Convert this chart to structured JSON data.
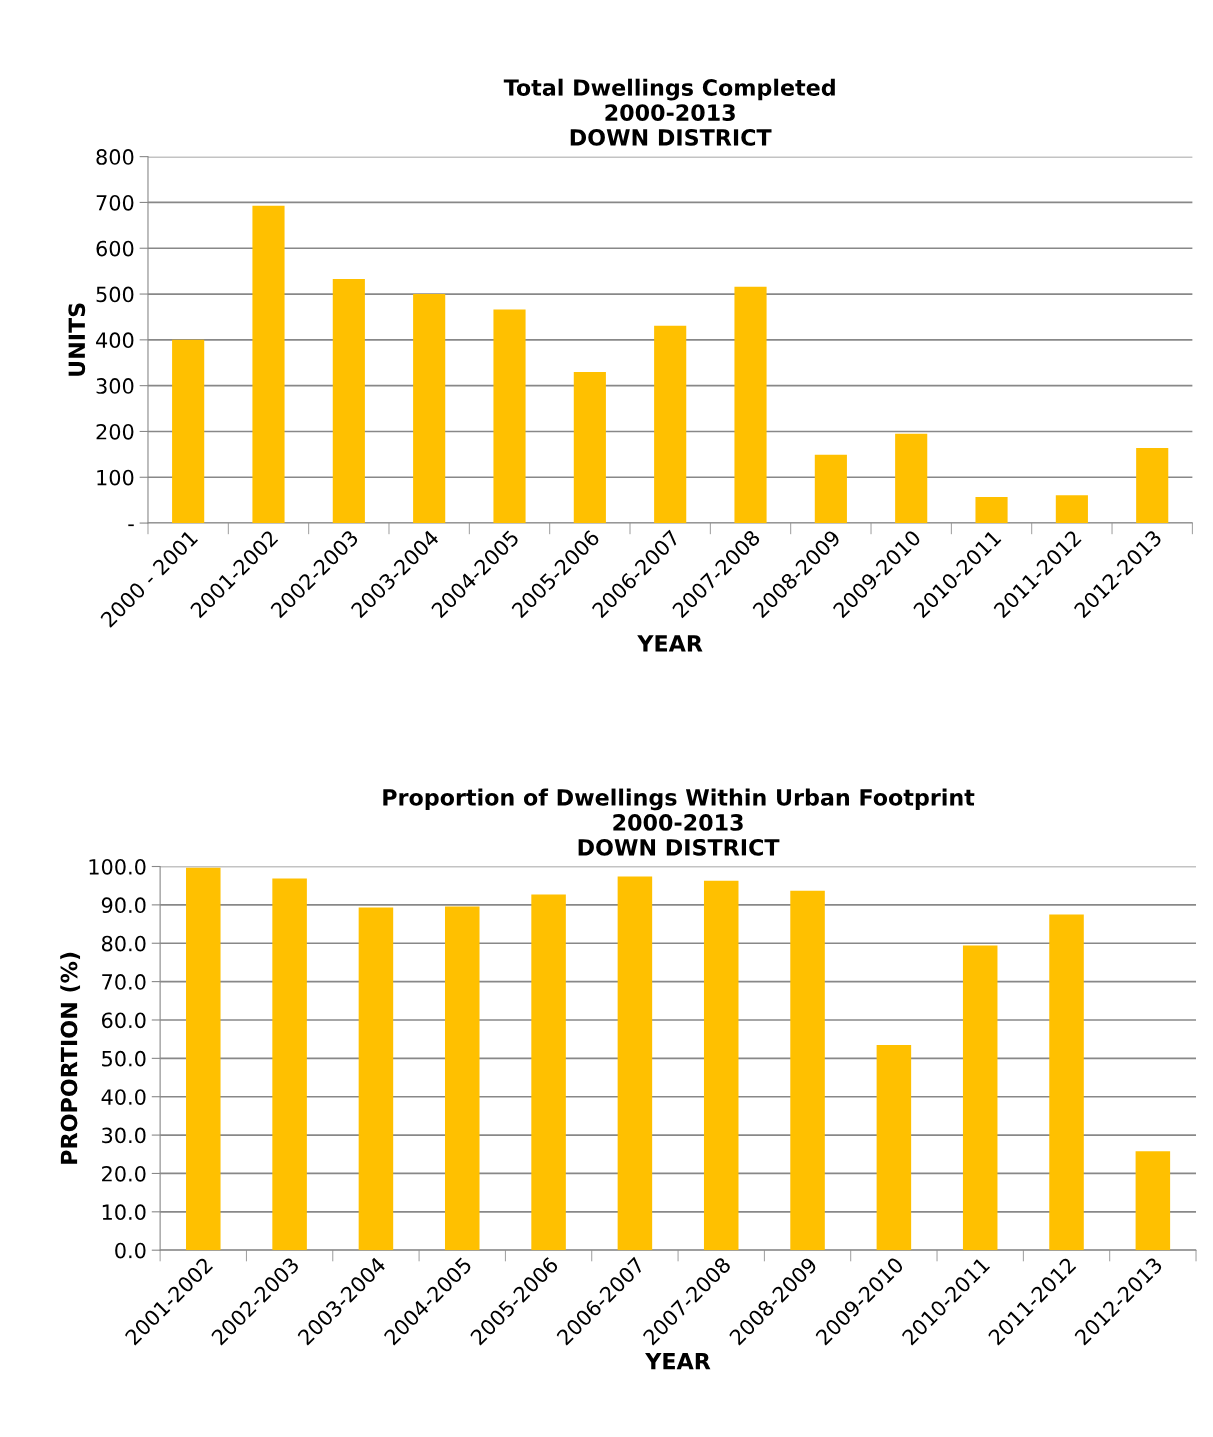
{
  "chart_data": [
    {
      "type": "bar",
      "title": "Total Dwellings Completed\n2000-2013\nDOWN DISTRICT",
      "xlabel": "YEAR",
      "ylabel": "UNITS",
      "categories": [
        "2000 - 2001",
        "2001-2002",
        "2002-2003",
        "2003-2004",
        "2004-2005",
        "2005-2006",
        "2006-2007",
        "2007-2008",
        "2008-2009",
        "2009-2010",
        "2010-2011",
        "2011-2012",
        "2012-2013"
      ],
      "values": [
        400,
        693,
        533,
        500,
        466,
        330,
        431,
        516,
        149,
        195,
        57,
        61,
        164
      ],
      "color": "#ffc000",
      "ylim": [
        0,
        800
      ],
      "yticks": [
        {
          "value": 0,
          "label": "-"
        },
        100,
        200,
        300,
        400,
        500,
        600,
        700,
        800
      ],
      "grid": "y"
    },
    {
      "type": "bar",
      "title": "Proportion of Dwellings Within Urban Footprint\n2000-2013\nDOWN DISTRICT",
      "xlabel": "YEAR",
      "ylabel": "PROPORTION (%)",
      "categories": [
        "2001-2002",
        "2002-2003",
        "2003-2004",
        "2004-2005",
        "2005-2006",
        "2006-2007",
        "2007-2008",
        "2008-2009",
        "2009-2010",
        "2010-2011",
        "2011-2012",
        "2012-2013"
      ],
      "values": [
        99.7,
        96.9,
        89.3,
        89.6,
        92.7,
        97.4,
        96.3,
        93.7,
        53.5,
        79.4,
        87.5,
        25.8
      ],
      "color": "#ffc000",
      "ylim": [
        0,
        100
      ],
      "yticks": [
        {
          "value": 0,
          "label": "0.0"
        },
        {
          "value": 10,
          "label": "10.0"
        },
        {
          "value": 20,
          "label": "20.0"
        },
        {
          "value": 30,
          "label": "30.0"
        },
        {
          "value": 40,
          "label": "40.0"
        },
        {
          "value": 50,
          "label": "50.0"
        },
        {
          "value": 60,
          "label": "60.0"
        },
        {
          "value": 70,
          "label": "70.0"
        },
        {
          "value": 80,
          "label": "80.0"
        },
        {
          "value": 90,
          "label": "90.0"
        },
        {
          "value": 100,
          "label": "100.0"
        }
      ],
      "grid": "y"
    }
  ]
}
